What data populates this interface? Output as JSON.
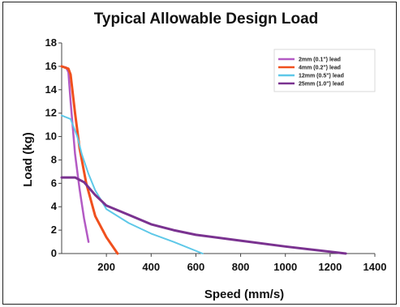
{
  "chart_data": {
    "type": "line",
    "title": "Typical Allowable Design Load",
    "xlabel": "Speed (mm/s)",
    "ylabel": "Load (kg)",
    "xlim": [
      0,
      1400
    ],
    "ylim": [
      0,
      18
    ],
    "xticks": [
      "200",
      "400",
      "600",
      "800",
      "1000",
      "1200",
      "1400"
    ],
    "yticks": [
      "0",
      "2",
      "4",
      "6",
      "8",
      "10",
      "12",
      "14",
      "16",
      "18"
    ],
    "grid": false,
    "legend_position": "top-right",
    "series": [
      {
        "name": "2mm (0.1\") lead",
        "color": "#b35ac4",
        "points": [
          [
            0,
            16
          ],
          [
            20,
            15.9
          ],
          [
            30,
            15.5
          ],
          [
            40,
            13
          ],
          [
            60,
            8.5
          ],
          [
            80,
            5.5
          ],
          [
            100,
            3
          ],
          [
            120,
            1
          ]
        ]
      },
      {
        "name": "4mm (0.2\") lead",
        "color": "#f0501e",
        "points": [
          [
            0,
            16
          ],
          [
            30,
            15.8
          ],
          [
            40,
            15.3
          ],
          [
            60,
            12
          ],
          [
            80,
            9
          ],
          [
            110,
            6
          ],
          [
            150,
            3.2
          ],
          [
            200,
            1.4
          ],
          [
            250,
            0
          ]
        ]
      },
      {
        "name": "12mm (0.5\") lead",
        "color": "#5ec8e8",
        "points": [
          [
            0,
            11.8
          ],
          [
            40,
            11.5
          ],
          [
            70,
            10
          ],
          [
            90,
            8.5
          ],
          [
            120,
            6.8
          ],
          [
            150,
            5.4
          ],
          [
            200,
            3.8
          ],
          [
            300,
            2.6
          ],
          [
            400,
            1.7
          ],
          [
            500,
            1
          ],
          [
            630,
            0
          ]
        ]
      },
      {
        "name": "25mm (1.0\") lead",
        "color": "#7a3290",
        "points": [
          [
            0,
            6.5
          ],
          [
            60,
            6.5
          ],
          [
            100,
            6.1
          ],
          [
            150,
            5
          ],
          [
            200,
            4.1
          ],
          [
            300,
            3.3
          ],
          [
            400,
            2.5
          ],
          [
            500,
            2
          ],
          [
            600,
            1.6
          ],
          [
            800,
            1.1
          ],
          [
            1000,
            0.6
          ],
          [
            1200,
            0.15
          ],
          [
            1270,
            0
          ]
        ]
      }
    ]
  }
}
